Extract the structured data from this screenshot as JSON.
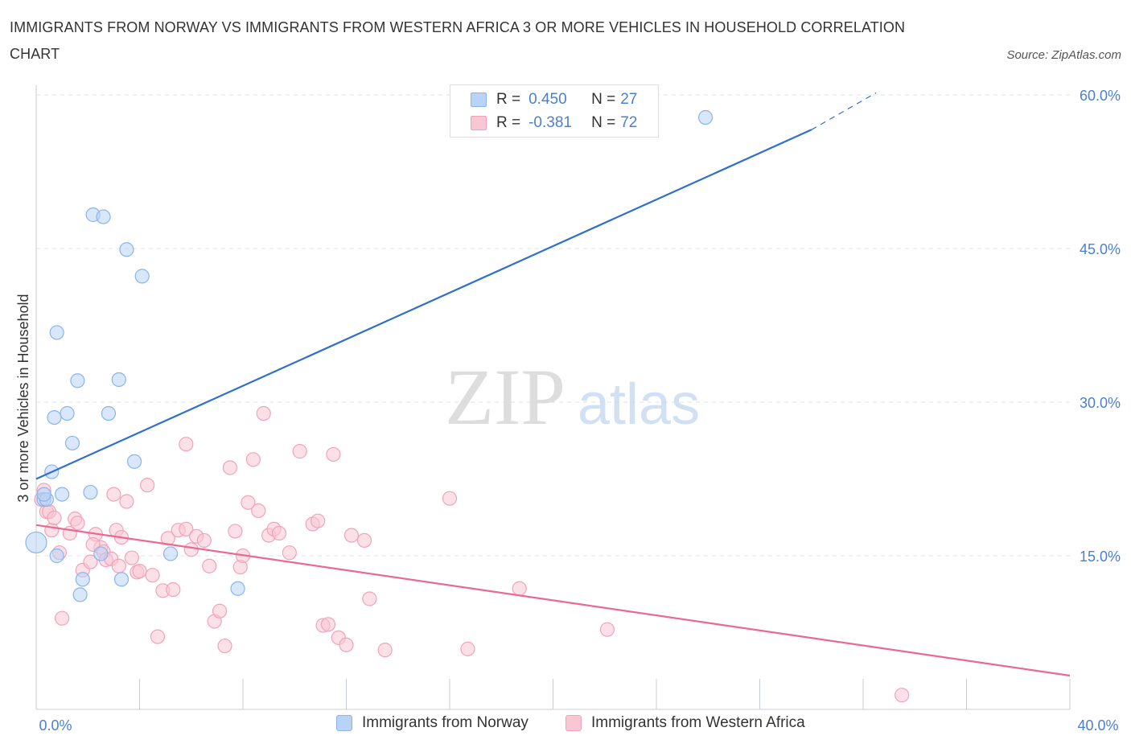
{
  "header": {
    "title": "IMMIGRANTS FROM NORWAY VS IMMIGRANTS FROM WESTERN AFRICA 3 OR MORE VEHICLES IN HOUSEHOLD CORRELATION CHART",
    "source": "Source: ZipAtlas.com"
  },
  "watermark": {
    "zip": "ZIP",
    "atlas": "atlas"
  },
  "stats": [
    {
      "r_label": "R =",
      "r_value": "0.450",
      "n_label": "N =",
      "n_value": "27"
    },
    {
      "r_label": "R =",
      "r_value": "-0.381",
      "n_label": "N =",
      "n_value": "72"
    }
  ],
  "legend": {
    "items": [
      "Immigrants from Norway",
      "Immigrants from Western Africa"
    ]
  },
  "colors": {
    "norway_fill": "#b8d3f5",
    "norway_stroke": "#8ab4ec",
    "norway_line": "#2f6fd0",
    "wafrica_fill": "#f9c6d4",
    "wafrica_stroke": "#f0a3ba",
    "wafrica_line": "#e86a93",
    "axis_text": "#4a7fd4",
    "grid": "#dde3ea"
  },
  "chart_data": {
    "type": "scatter",
    "title": "IMMIGRANTS FROM NORWAY VS IMMIGRANTS FROM WESTERN AFRICA 3 OR MORE VEHICLES IN HOUSEHOLD CORRELATION CHART",
    "xlabel": "",
    "ylabel": "3 or more Vehicles in Household",
    "xlim": [
      0,
      40
    ],
    "ylim": [
      0,
      60
    ],
    "x_tick_labels": [
      "0.0%",
      "40.0%"
    ],
    "y_ticks": [
      15,
      30,
      45,
      60
    ],
    "y_tick_labels": [
      "15.0%",
      "30.0%",
      "45.0%",
      "60.0%"
    ],
    "grid": true,
    "legend_position": "bottom",
    "series": [
      {
        "name": "Immigrants from Norway",
        "points": [
          [
            0.0,
            16.3
          ],
          [
            0.3,
            20.5
          ],
          [
            0.4,
            20.5
          ],
          [
            0.6,
            23.2
          ],
          [
            0.7,
            28.5
          ],
          [
            0.8,
            15.0
          ],
          [
            0.8,
            36.8
          ],
          [
            1.0,
            21.0
          ],
          [
            1.2,
            28.9
          ],
          [
            1.4,
            26.0
          ],
          [
            1.6,
            32.1
          ],
          [
            1.7,
            11.2
          ],
          [
            1.8,
            12.7
          ],
          [
            2.1,
            21.2
          ],
          [
            2.2,
            48.3
          ],
          [
            2.5,
            15.2
          ],
          [
            2.6,
            48.1
          ],
          [
            2.8,
            28.9
          ],
          [
            3.2,
            32.2
          ],
          [
            3.3,
            12.7
          ],
          [
            3.5,
            44.9
          ],
          [
            3.8,
            24.2
          ],
          [
            4.1,
            42.3
          ],
          [
            5.2,
            15.2
          ],
          [
            7.8,
            11.8
          ],
          [
            25.9,
            57.8
          ],
          [
            0.3,
            21.0
          ]
        ]
      },
      {
        "name": "Immigrants from Western Africa",
        "points": [
          [
            0.2,
            20.5
          ],
          [
            0.4,
            19.3
          ],
          [
            0.5,
            19.3
          ],
          [
            0.6,
            17.5
          ],
          [
            0.7,
            18.7
          ],
          [
            0.9,
            15.3
          ],
          [
            1.0,
            8.9
          ],
          [
            1.3,
            17.2
          ],
          [
            1.5,
            18.6
          ],
          [
            1.6,
            18.2
          ],
          [
            1.8,
            13.6
          ],
          [
            2.1,
            14.4
          ],
          [
            2.3,
            17.1
          ],
          [
            2.5,
            15.8
          ],
          [
            2.6,
            15.4
          ],
          [
            2.7,
            14.6
          ],
          [
            2.9,
            14.7
          ],
          [
            3.0,
            21.0
          ],
          [
            3.1,
            17.5
          ],
          [
            3.3,
            16.8
          ],
          [
            3.5,
            20.3
          ],
          [
            3.7,
            14.8
          ],
          [
            3.9,
            13.4
          ],
          [
            4.0,
            13.5
          ],
          [
            4.3,
            21.9
          ],
          [
            4.5,
            13.1
          ],
          [
            4.7,
            7.1
          ],
          [
            4.9,
            11.6
          ],
          [
            5.1,
            16.7
          ],
          [
            5.3,
            11.7
          ],
          [
            5.5,
            17.5
          ],
          [
            5.8,
            17.6
          ],
          [
            6.0,
            15.6
          ],
          [
            6.2,
            16.9
          ],
          [
            6.5,
            16.5
          ],
          [
            6.7,
            14.0
          ],
          [
            6.9,
            8.6
          ],
          [
            7.1,
            9.6
          ],
          [
            7.3,
            6.2
          ],
          [
            7.5,
            23.6
          ],
          [
            7.7,
            17.4
          ],
          [
            7.9,
            13.9
          ],
          [
            8.0,
            15.0
          ],
          [
            8.2,
            20.2
          ],
          [
            8.4,
            24.4
          ],
          [
            8.6,
            19.4
          ],
          [
            8.8,
            28.9
          ],
          [
            9.0,
            17.0
          ],
          [
            9.2,
            17.6
          ],
          [
            9.4,
            17.2
          ],
          [
            9.8,
            15.3
          ],
          [
            10.2,
            25.2
          ],
          [
            10.7,
            18.1
          ],
          [
            10.9,
            18.4
          ],
          [
            11.1,
            8.2
          ],
          [
            11.3,
            8.3
          ],
          [
            11.5,
            24.9
          ],
          [
            11.7,
            7.0
          ],
          [
            12.0,
            6.3
          ],
          [
            12.2,
            17.0
          ],
          [
            12.7,
            16.5
          ],
          [
            12.9,
            10.8
          ],
          [
            13.5,
            5.8
          ],
          [
            16.0,
            20.6
          ],
          [
            16.7,
            5.9
          ],
          [
            18.7,
            11.8
          ],
          [
            22.1,
            7.8
          ],
          [
            33.5,
            1.4
          ],
          [
            0.3,
            21.4
          ],
          [
            5.8,
            25.9
          ],
          [
            3.2,
            14.0
          ],
          [
            2.2,
            16.1
          ]
        ]
      }
    ],
    "trendlines": [
      {
        "name": "Immigrants from Norway",
        "solid": [
          [
            0,
            22.5
          ],
          [
            30,
            56.6
          ]
        ],
        "dashed": [
          [
            30,
            56.6
          ],
          [
            32.5,
            60.2
          ]
        ]
      },
      {
        "name": "Immigrants from Western Africa",
        "solid": [
          [
            0,
            18.0
          ],
          [
            40,
            3.3
          ]
        ]
      }
    ]
  }
}
